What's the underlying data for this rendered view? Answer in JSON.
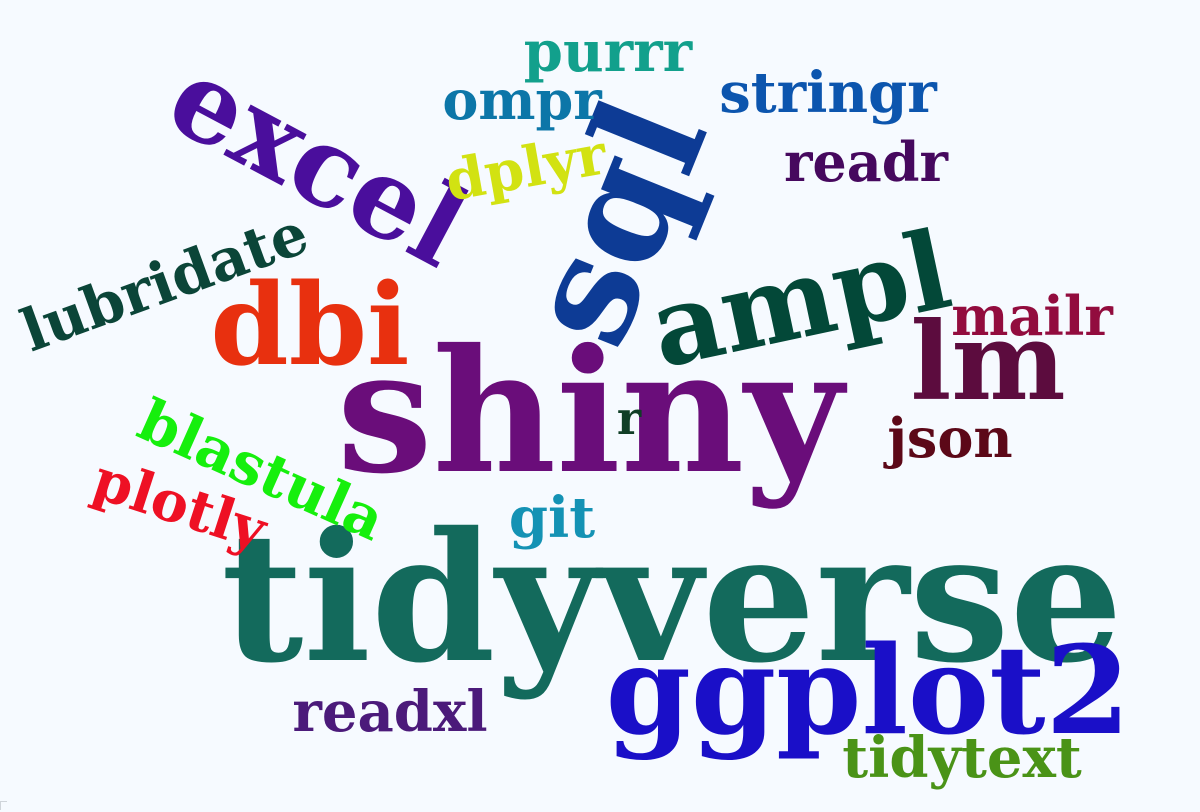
{
  "background_color": "#f6faff",
  "words": [
    {
      "id": "tidyverse",
      "text": "tidyverse",
      "color": "#136a5c",
      "rotation_deg": 0
    },
    {
      "id": "shiny",
      "text": "shiny",
      "color": "#6a0d7a",
      "rotation_deg": 0
    },
    {
      "id": "ggplot2",
      "text": "ggplot2",
      "color": "#1a0fc8",
      "rotation_deg": 0
    },
    {
      "id": "sql",
      "text": "sql",
      "color": "#0d3b95",
      "rotation_deg": -68
    },
    {
      "id": "ampl",
      "text": "ampl",
      "color": "#034838",
      "rotation_deg": -12
    },
    {
      "id": "excel",
      "text": "excel",
      "color": "#4a0e9c",
      "rotation_deg": 28
    },
    {
      "id": "dbi",
      "text": "dbi",
      "color": "#e8300f",
      "rotation_deg": 0
    },
    {
      "id": "lm",
      "text": "lm",
      "color": "#5c0c3e",
      "rotation_deg": 0
    },
    {
      "id": "lubridate",
      "text": "lubridate",
      "color": "#0b4538",
      "rotation_deg": -20
    },
    {
      "id": "blastula",
      "text": "blastula",
      "color": "#16ef0d",
      "rotation_deg": 24
    },
    {
      "id": "plotly",
      "text": "plotly",
      "color": "#ee1024",
      "rotation_deg": 18
    },
    {
      "id": "readxl",
      "text": "readxl",
      "color": "#4b1a7a",
      "rotation_deg": 0
    },
    {
      "id": "tidytext",
      "text": "tidytext",
      "color": "#4a9317",
      "rotation_deg": 0
    },
    {
      "id": "purrr",
      "text": "purrr",
      "color": "#12a08c",
      "rotation_deg": 0
    },
    {
      "id": "ompr",
      "text": "ompr",
      "color": "#0c76a8",
      "rotation_deg": 0
    },
    {
      "id": "stringr",
      "text": "stringr",
      "color": "#0c55ae",
      "rotation_deg": 0
    },
    {
      "id": "readr",
      "text": "readr",
      "color": "#46085e",
      "rotation_deg": 0
    },
    {
      "id": "dplyr",
      "text": "dplyr",
      "color": "#d2e212",
      "rotation_deg": -10
    },
    {
      "id": "mailr",
      "text": "mailr",
      "color": "#920c3e",
      "rotation_deg": 0
    },
    {
      "id": "json",
      "text": "json",
      "color": "#5c0818",
      "rotation_deg": 0
    },
    {
      "id": "git",
      "text": "git",
      "color": "#1492b4",
      "rotation_deg": 0
    },
    {
      "id": "r",
      "text": "r",
      "color": "#103e26",
      "rotation_deg": 0
    }
  ]
}
